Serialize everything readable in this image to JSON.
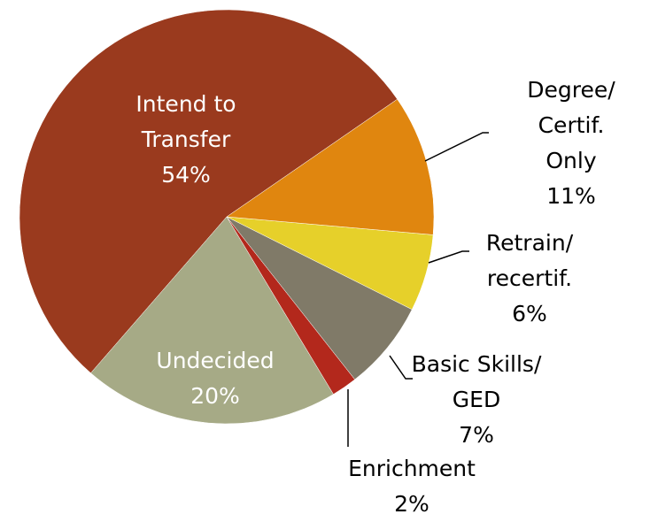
{
  "chart_data": {
    "type": "pie",
    "categories": [
      "Intend to\nTransfer",
      "Degree/\nCertif. Only",
      "Retrain/\nrecertif.",
      "Basic Skills/\nGED",
      "Enrichment",
      "Undecided"
    ],
    "values": [
      54,
      11,
      6,
      7,
      2,
      20
    ],
    "value_labels": [
      "54%",
      "11%",
      "6%",
      "7%",
      "2%",
      "20%"
    ],
    "colors": [
      "#9a3a1e",
      "#e0860f",
      "#e6d02a",
      "#807a68",
      "#b3281c",
      "#a6aa86"
    ]
  }
}
